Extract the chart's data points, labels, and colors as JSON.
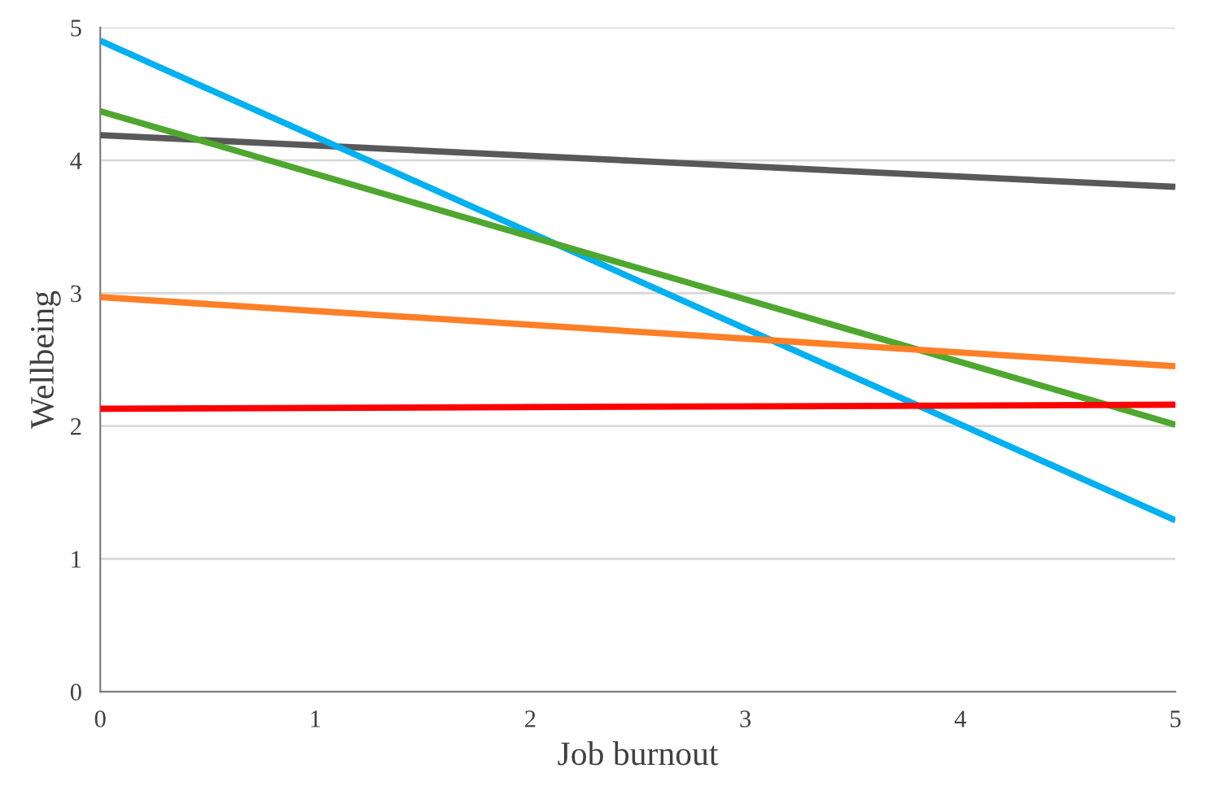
{
  "chart_data": {
    "type": "line",
    "xlabel": "Job burnout",
    "ylabel": "Wellbeing",
    "x": [
      0,
      5
    ],
    "series": [
      {
        "color": "#595959",
        "values": [
          4.19,
          3.8
        ]
      },
      {
        "color": "#00b0f0",
        "values": [
          4.9,
          1.29
        ]
      },
      {
        "color": "#4ea72e",
        "values": [
          4.37,
          2.01
        ]
      },
      {
        "color": "#ff7f27",
        "values": [
          2.97,
          2.45
        ]
      },
      {
        "color": "#ff0000",
        "values": [
          2.13,
          2.16
        ]
      }
    ],
    "xlim": [
      0,
      5
    ],
    "ylim": [
      0,
      5
    ],
    "xticks": [
      0,
      1,
      2,
      3,
      4,
      5
    ],
    "yticks": [
      0,
      1,
      2,
      3,
      4,
      5
    ],
    "grid": "y",
    "legend": false,
    "marker": "none",
    "line_style": "solid"
  }
}
